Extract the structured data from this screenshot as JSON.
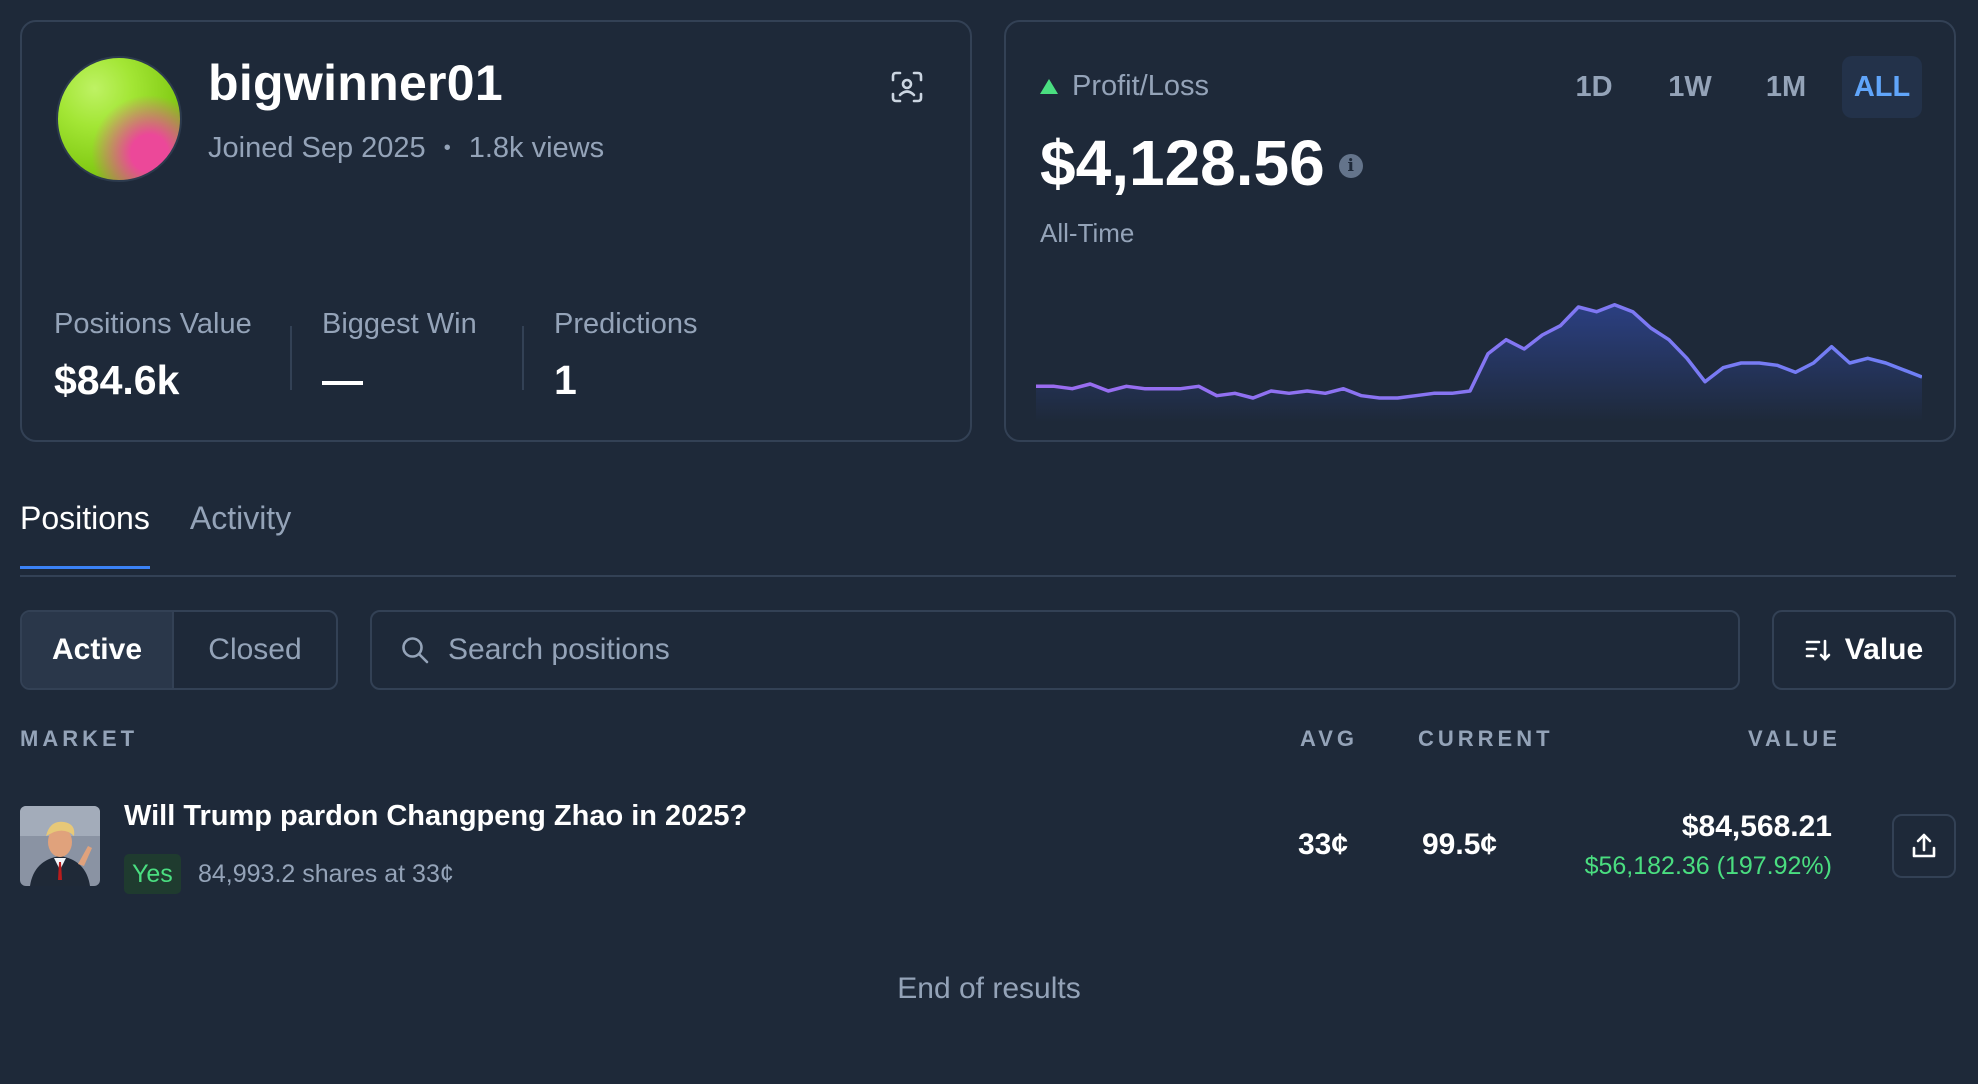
{
  "profile": {
    "username": "bigwinner01",
    "joined": "Joined Sep 2025",
    "separator": "•",
    "views": "1.8k views",
    "stats": [
      {
        "label": "Positions Value",
        "value": "$84.6k"
      },
      {
        "label": "Biggest Win",
        "value": "—"
      },
      {
        "label": "Predictions",
        "value": "1"
      }
    ],
    "icons": {
      "scan": "scan-icon"
    }
  },
  "pnl": {
    "label": "Profit/Loss",
    "value": "$4,128.56",
    "info_glyph": "i",
    "period": "All-Time",
    "ranges": [
      "1D",
      "1W",
      "1M",
      "ALL"
    ],
    "active_range": "ALL"
  },
  "chart_data": {
    "type": "area",
    "title": "",
    "xlabel": "",
    "ylabel": "",
    "grid": false,
    "values": [
      4.0,
      4.0,
      3.95,
      4.05,
      3.9,
      4.0,
      3.95,
      3.95,
      3.95,
      4.0,
      3.8,
      3.85,
      3.75,
      3.9,
      3.85,
      3.9,
      3.85,
      3.95,
      3.8,
      3.75,
      3.75,
      3.8,
      3.85,
      3.85,
      3.9,
      4.7,
      5.0,
      4.8,
      5.1,
      5.3,
      5.7,
      5.6,
      5.75,
      5.6,
      5.25,
      5.0,
      4.6,
      4.1,
      4.4,
      4.5,
      4.5,
      4.45,
      4.3,
      4.5,
      4.85,
      4.5,
      4.6,
      4.5,
      4.35,
      4.2
    ],
    "colors": {
      "line": "#9b6cf0",
      "line_end": "#6f7ff5",
      "fill": "#3b5bdb"
    }
  },
  "tabs": [
    {
      "label": "Positions",
      "active": true
    },
    {
      "label": "Activity",
      "active": false
    }
  ],
  "filter": {
    "active": "Active",
    "closed": "Closed"
  },
  "search": {
    "placeholder": "Search positions",
    "value": ""
  },
  "sort": {
    "label": "Value"
  },
  "table": {
    "headers": {
      "market": "MARKET",
      "avg": "AVG",
      "current": "CURRENT",
      "value": "VALUE"
    },
    "rows": [
      {
        "title": "Will Trump pardon Changpeng Zhao in 2025?",
        "outcome": "Yes",
        "shares": "84,993.2 shares at 33¢",
        "avg": "33¢",
        "current": "99.5¢",
        "value": "$84,568.21",
        "pnl": "$56,182.36 (197.92%)"
      }
    ]
  },
  "footer": "End of results",
  "colors": {
    "background": "#1e2939",
    "border": "#334155",
    "accent": "#3b82f6",
    "positive": "#4ade80",
    "muted": "#94a3b8"
  }
}
